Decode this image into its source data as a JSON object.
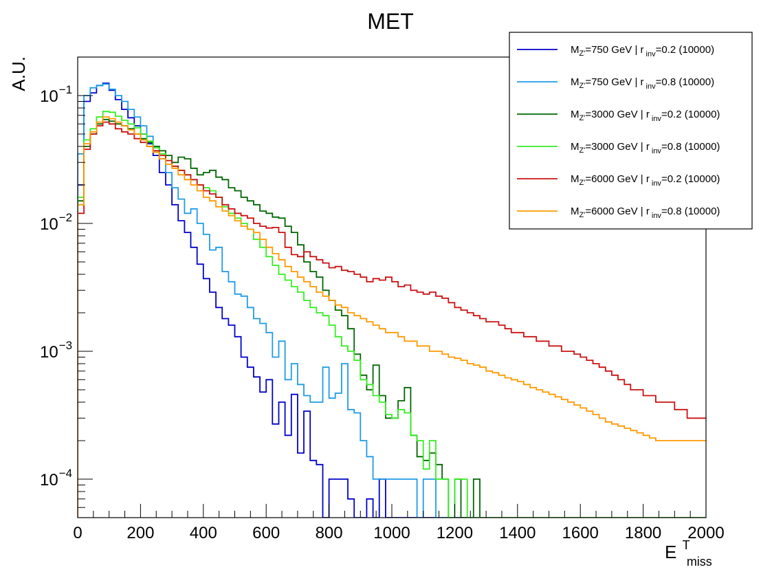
{
  "chart_data": {
    "type": "line",
    "title": "MET",
    "ylabel": "A.U.",
    "xlabel": "E",
    "xlabel_sup": "T",
    "xlabel_sub": "miss",
    "log_y": true,
    "grid": false,
    "legend_position": "top-right",
    "xlim": [
      0,
      2000
    ],
    "ylim": [
      5e-05,
      0.2
    ],
    "x_ticks": [
      "0",
      "200",
      "400",
      "600",
      "800",
      "1000",
      "1200",
      "1400",
      "1600",
      "1800",
      "2000"
    ],
    "y_ticks": [
      {
        "base": "10",
        "exp": "−1",
        "value": 0.1
      },
      {
        "base": "10",
        "exp": "−2",
        "value": 0.01
      },
      {
        "base": "10",
        "exp": "−3",
        "value": 0.001
      },
      {
        "base": "10",
        "exp": "−4",
        "value": 0.0001
      }
    ],
    "bin_width": 20,
    "series": [
      {
        "legend": {
          "pre": "M",
          "msub": "Z'",
          "mid": "=750 GeV | r",
          "rsub": "inv",
          "post": "=0.2 (10000)"
        },
        "color": "#0000CC",
        "values": [
          0.02,
          0.09,
          0.105,
          0.12,
          0.125,
          0.11,
          0.093,
          0.078,
          0.067,
          0.058,
          0.05,
          0.042,
          0.034,
          0.025,
          0.02,
          0.014,
          0.0105,
          0.0085,
          0.0065,
          0.0048,
          0.0037,
          0.0029,
          0.0022,
          0.0018,
          0.0016,
          0.0013,
          0.0009,
          0.00075,
          0.00063,
          0.00048,
          0.0006,
          0.00027,
          0.0004,
          0.00022,
          0.00046,
          0.00016,
          0.00034,
          0.00014,
          0.00013,
          5e-05,
          0.0001,
          0.0001,
          0.0001,
          7e-05,
          5e-05,
          5e-05,
          7e-05,
          5e-05,
          0.0001,
          5e-05,
          5e-05,
          5e-05,
          5e-05,
          5e-05,
          5e-05,
          5e-05,
          5e-05,
          5e-05,
          5e-05,
          5e-05,
          5e-05,
          5e-05,
          5e-05,
          5e-05,
          5e-05,
          5e-05,
          5e-05,
          5e-05,
          5e-05,
          5e-05,
          5e-05,
          5e-05,
          5e-05,
          5e-05,
          5e-05,
          5e-05,
          5e-05,
          5e-05,
          5e-05,
          5e-05,
          5e-05,
          5e-05,
          5e-05,
          5e-05,
          5e-05,
          5e-05,
          5e-05,
          5e-05,
          5e-05,
          5e-05,
          5e-05,
          5e-05,
          5e-05,
          5e-05,
          5e-05,
          5e-05,
          5e-05,
          5e-05,
          5e-05,
          5e-05
        ]
      },
      {
        "legend": {
          "pre": "M",
          "msub": "Z'",
          "mid": "=750 GeV | r",
          "rsub": "inv",
          "post": "=0.8 (10000)"
        },
        "color": "#1E9BE8",
        "values": [
          0.035,
          0.1,
          0.115,
          0.12,
          0.123,
          0.112,
          0.1,
          0.09,
          0.078,
          0.068,
          0.058,
          0.048,
          0.04,
          0.032,
          0.025,
          0.019,
          0.0155,
          0.012,
          0.013,
          0.01,
          0.0082,
          0.0062,
          0.0065,
          0.0042,
          0.0035,
          0.0028,
          0.0027,
          0.0022,
          0.0018,
          0.00165,
          0.0014,
          0.0009,
          0.0012,
          0.0006,
          0.0008,
          0.00055,
          0.00045,
          0.0004,
          0.0004,
          0.00075,
          0.00043,
          0.00047,
          0.0008,
          0.00035,
          0.00033,
          0.0002,
          0.00015,
          0.0001,
          0.0001,
          0.0001,
          0.0001,
          0.0001,
          0.0001,
          0.0001,
          5e-05,
          0.0001,
          0.0001,
          5e-05,
          5e-05,
          5e-05,
          5e-05,
          5e-05,
          5e-05,
          5e-05,
          5e-05,
          5e-05,
          5e-05,
          5e-05,
          5e-05,
          5e-05,
          5e-05,
          5e-05,
          5e-05,
          5e-05,
          5e-05,
          5e-05,
          5e-05,
          5e-05,
          5e-05,
          5e-05,
          5e-05,
          5e-05,
          5e-05,
          5e-05,
          5e-05,
          5e-05,
          5e-05,
          5e-05,
          5e-05,
          5e-05,
          5e-05,
          5e-05,
          5e-05,
          5e-05,
          5e-05,
          5e-05,
          5e-05,
          5e-05,
          5e-05,
          5e-05
        ]
      },
      {
        "legend": {
          "pre": "M",
          "msub": "Z'",
          "mid": "=3000 GeV | r",
          "rsub": "inv",
          "post": "=0.2 (10000)"
        },
        "color": "#006600",
        "values": [
          0.015,
          0.04,
          0.05,
          0.06,
          0.065,
          0.063,
          0.06,
          0.058,
          0.055,
          0.05,
          0.046,
          0.043,
          0.04,
          0.037,
          0.034,
          0.03,
          0.033,
          0.032,
          0.027,
          0.024,
          0.025,
          0.026,
          0.023,
          0.022,
          0.019,
          0.018,
          0.016,
          0.015,
          0.014,
          0.0125,
          0.012,
          0.0112,
          0.011,
          0.0095,
          0.0085,
          0.0068,
          0.005,
          0.0042,
          0.0038,
          0.003,
          0.0025,
          0.0021,
          0.0019,
          0.0015,
          0.00095,
          0.00065,
          0.0005,
          0.00078,
          0.00045,
          0.0003,
          0.0003,
          0.00041,
          0.00052,
          0.00022,
          0.00015,
          0.00014,
          0.00016,
          0.00013,
          0.0001,
          5e-05,
          0.0001,
          5e-05,
          5e-05,
          0.0001,
          5e-05,
          5e-05,
          5e-05,
          5e-05,
          5e-05,
          5e-05,
          5e-05,
          5e-05,
          5e-05,
          5e-05,
          5e-05,
          5e-05,
          5e-05,
          5e-05,
          5e-05,
          5e-05,
          5e-05,
          5e-05,
          5e-05,
          5e-05,
          5e-05,
          5e-05,
          5e-05,
          5e-05,
          5e-05,
          5e-05,
          5e-05,
          5e-05,
          5e-05,
          5e-05,
          5e-05,
          5e-05,
          5e-05,
          5e-05,
          5e-05,
          5e-05
        ]
      },
      {
        "legend": {
          "pre": "M",
          "msub": "Z'",
          "mid": "=3000 GeV | r",
          "rsub": "inv",
          "post": "=0.8 (10000)"
        },
        "color": "#33EE22",
        "values": [
          0.016,
          0.045,
          0.055,
          0.068,
          0.075,
          0.074,
          0.069,
          0.064,
          0.06,
          0.056,
          0.05,
          0.044,
          0.039,
          0.035,
          0.031,
          0.028,
          0.026,
          0.024,
          0.022,
          0.02,
          0.019,
          0.018,
          0.016,
          0.0135,
          0.012,
          0.011,
          0.01,
          0.009,
          0.0075,
          0.0065,
          0.0055,
          0.0047,
          0.004,
          0.0036,
          0.0032,
          0.0029,
          0.0025,
          0.0022,
          0.002,
          0.0019,
          0.0016,
          0.0013,
          0.0011,
          0.001,
          0.00085,
          0.0006,
          0.00055,
          0.00045,
          0.0004,
          0.00032,
          0.0003,
          0.00035,
          0.00033,
          0.00022,
          0.0002,
          0.00012,
          0.0002,
          0.0001,
          0.0001,
          5e-05,
          0.0001,
          0.0001,
          5e-05,
          5e-05,
          5e-05,
          5e-05,
          5e-05,
          5e-05,
          5e-05,
          5e-05,
          5e-05,
          5e-05,
          5e-05,
          5e-05,
          5e-05,
          5e-05,
          5e-05,
          5e-05,
          5e-05,
          5e-05,
          5e-05,
          5e-05,
          5e-05,
          5e-05,
          5e-05,
          5e-05,
          5e-05,
          5e-05,
          5e-05,
          5e-05,
          5e-05,
          5e-05,
          5e-05,
          5e-05,
          5e-05,
          5e-05,
          5e-05,
          5e-05,
          5e-05,
          5e-05
        ]
      },
      {
        "legend": {
          "pre": "M",
          "msub": "Z'",
          "mid": "=6000 GeV | r",
          "rsub": "inv",
          "post": "=0.2 (10000)"
        },
        "color": "#CC1111",
        "values": [
          0.012,
          0.038,
          0.05,
          0.058,
          0.062,
          0.06,
          0.055,
          0.052,
          0.05,
          0.046,
          0.043,
          0.04,
          0.037,
          0.034,
          0.031,
          0.028,
          0.026,
          0.024,
          0.022,
          0.02,
          0.018,
          0.017,
          0.016,
          0.014,
          0.013,
          0.012,
          0.0115,
          0.011,
          0.01,
          0.0095,
          0.0092,
          0.0093,
          0.0085,
          0.0065,
          0.0057,
          0.0055,
          0.006,
          0.0055,
          0.0052,
          0.0049,
          0.0045,
          0.0046,
          0.0043,
          0.0042,
          0.004,
          0.0038,
          0.0035,
          0.0037,
          0.0036,
          0.0038,
          0.0035,
          0.0032,
          0.0033,
          0.003,
          0.0029,
          0.0028,
          0.0029,
          0.0027,
          0.0026,
          0.0024,
          0.0022,
          0.0021,
          0.002,
          0.0019,
          0.0018,
          0.0017,
          0.0017,
          0.0016,
          0.0015,
          0.0014,
          0.0014,
          0.0013,
          0.0013,
          0.0012,
          0.0012,
          0.0011,
          0.0011,
          0.001,
          0.001,
          0.00095,
          0.0009,
          0.00085,
          0.0008,
          0.00075,
          0.0007,
          0.00065,
          0.0006,
          0.00055,
          0.0005,
          0.0005,
          0.00045,
          0.00045,
          0.0004,
          0.0004,
          0.0004,
          0.00035,
          0.00035,
          0.0003,
          0.0003,
          0.0003
        ]
      },
      {
        "legend": {
          "pre": "M",
          "msub": "Z'",
          "mid": "=6000 GeV | r",
          "rsub": "inv",
          "post": "=0.8 (10000)"
        },
        "color": "#FF9900",
        "values": [
          0.014,
          0.042,
          0.052,
          0.062,
          0.068,
          0.066,
          0.062,
          0.058,
          0.054,
          0.05,
          0.045,
          0.04,
          0.036,
          0.032,
          0.029,
          0.027,
          0.024,
          0.022,
          0.02,
          0.018,
          0.016,
          0.015,
          0.0135,
          0.0125,
          0.0115,
          0.0105,
          0.0095,
          0.009,
          0.0085,
          0.0075,
          0.0065,
          0.0058,
          0.0052,
          0.0046,
          0.0042,
          0.0038,
          0.0035,
          0.0032,
          0.0029,
          0.0027,
          0.0025,
          0.0023,
          0.0022,
          0.002,
          0.0019,
          0.0018,
          0.0017,
          0.0016,
          0.0015,
          0.0014,
          0.0014,
          0.0013,
          0.0012,
          0.0012,
          0.0011,
          0.0011,
          0.001,
          0.001,
          0.00095,
          0.0009,
          0.00088,
          0.00085,
          0.0008,
          0.00078,
          0.00075,
          0.0007,
          0.00068,
          0.00065,
          0.00062,
          0.0006,
          0.00058,
          0.00055,
          0.00052,
          0.0005,
          0.00048,
          0.00046,
          0.00044,
          0.00042,
          0.0004,
          0.00038,
          0.00036,
          0.00034,
          0.00032,
          0.0003,
          0.00028,
          0.00027,
          0.00026,
          0.00025,
          0.00024,
          0.00023,
          0.00022,
          0.00021,
          0.0002,
          0.0002,
          0.0002,
          0.0002,
          0.0002,
          0.0002,
          0.0002,
          0.0002
        ]
      }
    ]
  }
}
